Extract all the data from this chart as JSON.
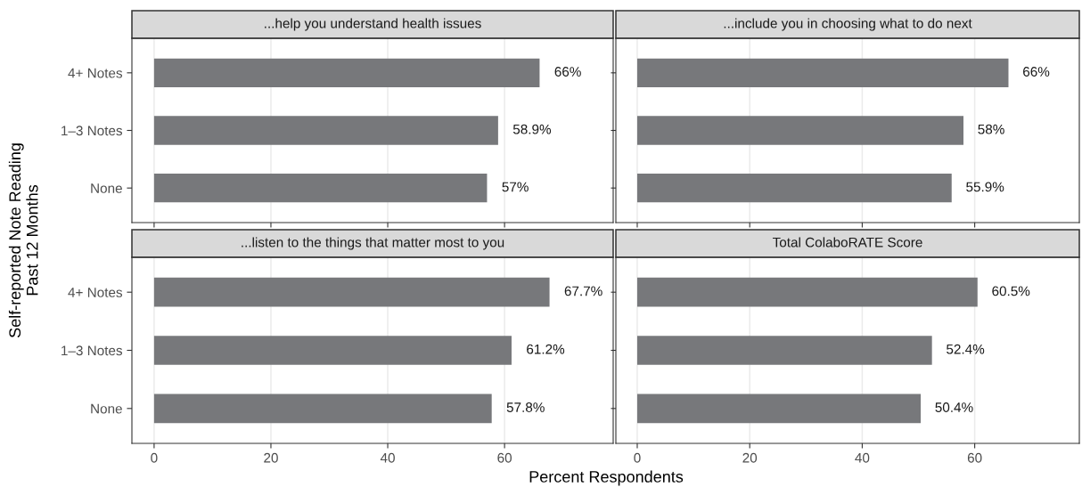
{
  "chart_data": [
    {
      "type": "bar",
      "orientation": "horizontal",
      "title": "...help you understand health issues",
      "ylabel": "Self-reported Note Reading\nPast 12 Months",
      "xlabel": "Percent Respondents",
      "categories": [
        "4+ Notes",
        "1–3 Notes",
        "None"
      ],
      "values": [
        66,
        58.9,
        57
      ],
      "value_labels": [
        "66%",
        "58.9%",
        "57%"
      ],
      "color": "#77787b",
      "xlim": [
        -3.8,
        78.6
      ],
      "xticks": [
        0,
        20,
        40,
        60
      ],
      "grid": "x",
      "tick_labels": "y"
    },
    {
      "type": "bar",
      "orientation": "horizontal",
      "title": "...include you in choosing what to do next",
      "categories": [
        null,
        null,
        null
      ],
      "values": [
        66,
        58,
        55.9
      ],
      "value_labels": [
        "66%",
        "58%",
        "55.9%"
      ],
      "color": "#77787b",
      "xlim": [
        -3.8,
        78.6
      ],
      "xticks": [
        0,
        20,
        40,
        60
      ],
      "grid": "x",
      "tick_labels": false
    },
    {
      "type": "bar",
      "orientation": "horizontal",
      "title": "...listen to the things that matter most to you",
      "categories": [
        "4+ Notes",
        "1–3 Notes",
        "None"
      ],
      "values": [
        67.7,
        61.2,
        57.8
      ],
      "value_labels": [
        "67.7%",
        "61.2%",
        "57.8%"
      ],
      "color": "#77787b",
      "xlim": [
        -3.8,
        78.6
      ],
      "xticks": [
        0,
        20,
        40,
        60
      ],
      "grid": "x"
    },
    {
      "type": "bar",
      "orientation": "horizontal",
      "title": "Total ColaboRATE Score",
      "categories": [
        null,
        null,
        null
      ],
      "values": [
        60.5,
        52.4,
        50.4
      ],
      "value_labels": [
        "60.5%",
        "52.4%",
        "50.4%"
      ],
      "color": "#77787b",
      "xlim": [
        -3.8,
        78.6
      ],
      "xticks": [
        0,
        20,
        40,
        60
      ],
      "grid": "x",
      "tick_labels": "x"
    }
  ]
}
